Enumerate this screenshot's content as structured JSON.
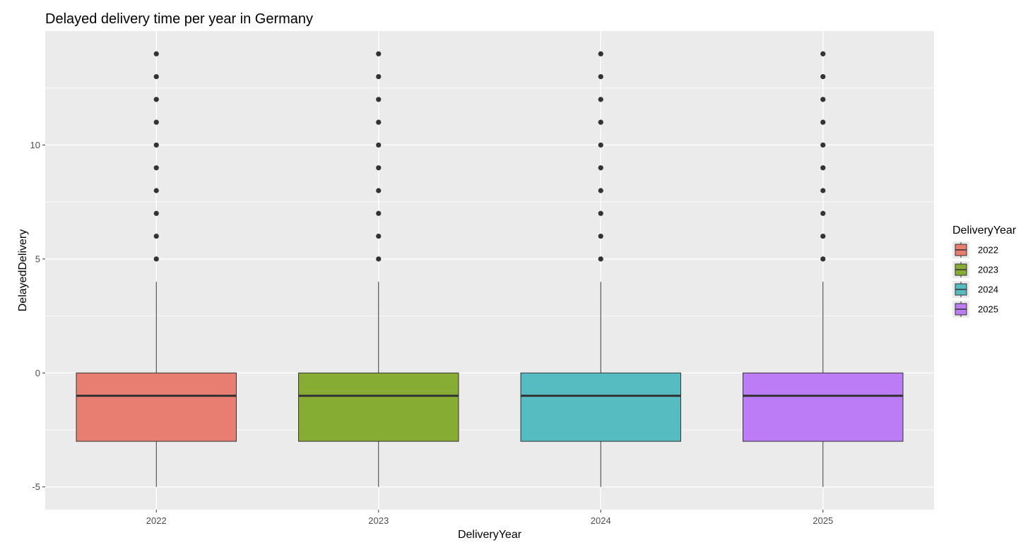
{
  "chart_data": {
    "type": "boxplot",
    "title": "Delayed delivery time per year in Germany",
    "xlabel": "DeliveryYear",
    "ylabel": "DelayedDelivery",
    "ylim": [
      -6,
      15
    ],
    "y_ticks": [
      -5,
      0,
      5,
      10
    ],
    "y_tick_labels": [
      "-5",
      "0",
      "5",
      "10"
    ],
    "y_minor_ticks": [
      -2.5,
      2.5,
      7.5,
      12.5
    ],
    "categories": [
      "2022",
      "2023",
      "2024",
      "2025"
    ],
    "legend": {
      "title": "DeliveryYear",
      "position": "right",
      "entries": [
        "2022",
        "2023",
        "2024",
        "2025"
      ]
    },
    "background": "#EBEBEB",
    "grid": true,
    "colors": [
      "#E87D72",
      "#87AC34",
      "#56BCC2",
      "#BB7CF6"
    ],
    "series": [
      {
        "category": "2022",
        "whisker_low": -5,
        "q1": -3,
        "median": -1,
        "q3": 0,
        "whisker_high": 4,
        "outliers": [
          5,
          6,
          7,
          8,
          9,
          10,
          11,
          12,
          13,
          14
        ]
      },
      {
        "category": "2023",
        "whisker_low": -5,
        "q1": -3,
        "median": -1,
        "q3": 0,
        "whisker_high": 4,
        "outliers": [
          5,
          6,
          7,
          8,
          9,
          10,
          11,
          12,
          13,
          14
        ]
      },
      {
        "category": "2024",
        "whisker_low": -5,
        "q1": -3,
        "median": -1,
        "q3": 0,
        "whisker_high": 4,
        "outliers": [
          5,
          6,
          7,
          8,
          9,
          10,
          11,
          12,
          13,
          14
        ]
      },
      {
        "category": "2025",
        "whisker_low": -5,
        "q1": -3,
        "median": -1,
        "q3": 0,
        "whisker_high": 4,
        "outliers": [
          5,
          6,
          7,
          8,
          9,
          10,
          11,
          12,
          13,
          14
        ]
      }
    ]
  }
}
